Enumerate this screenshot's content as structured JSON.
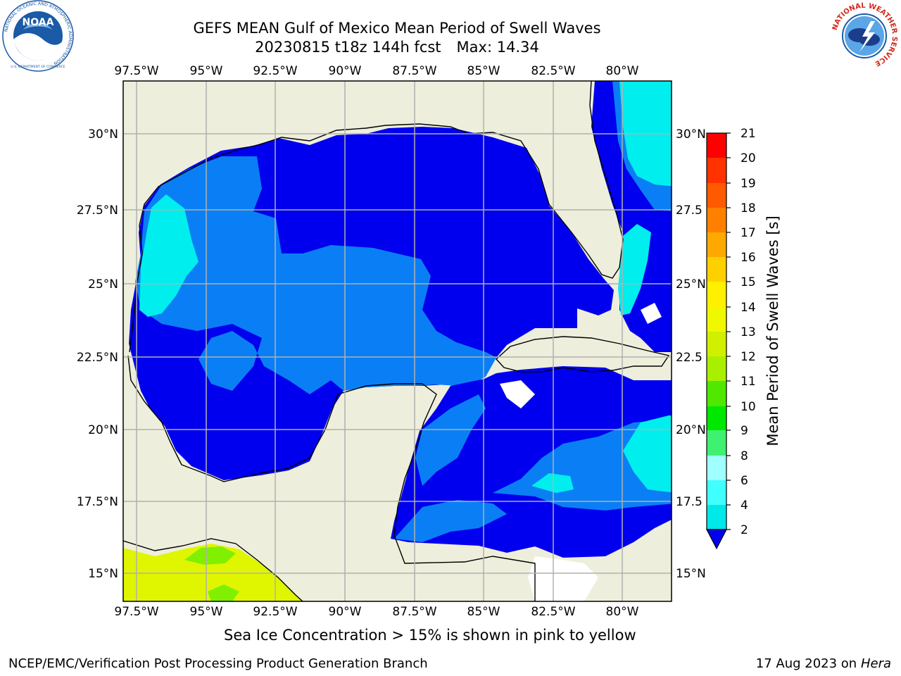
{
  "header": {
    "title": "GEFS MEAN Gulf of Mexico Mean Period of Swell Waves",
    "date_line": "20230815 t18z 144h fcst",
    "max_line": "Max: 14.34"
  },
  "logos": {
    "left": {
      "name": "NOAA",
      "ring_text": "NATIONAL OCEANIC AND ATMOSPHERIC ADMINISTRATION",
      "bottom_text": "U.S. DEPARTMENT OF COMMERCE",
      "color": "#1a5aa6"
    },
    "right": {
      "ring_text": "NATIONAL WEATHER SERVICE",
      "color": "#d42a1e"
    }
  },
  "map": {
    "lon_labels": [
      "97.5°W",
      "95°W",
      "92.5°W",
      "90°W",
      "87.5°W",
      "85°W",
      "82.5°W",
      "80°W"
    ],
    "lat_labels_left": [
      "30°N",
      "27.5°N",
      "25°N",
      "22.5°N",
      "20°N",
      "17.5°N",
      "15°N"
    ],
    "lat_labels_right": [
      "30°N",
      "27.5",
      "25°N",
      "22.5",
      "20°N",
      "17.5",
      "15°N"
    ],
    "colors": {
      "land": "#eeeedc",
      "deep_blue": "#0000ee",
      "mid_blue": "#0a7ff5",
      "cyan": "#00eeee",
      "ice_yellow": "#e0f500",
      "ice_green": "#80f000",
      "grid": "#b0b0b0"
    }
  },
  "colorbar": {
    "label": "Mean Period of Swell Waves [s]",
    "ticks": [
      "21",
      "20",
      "19",
      "18",
      "17",
      "16",
      "15",
      "14",
      "13",
      "12",
      "11",
      "10",
      "9",
      "8",
      "6",
      "4",
      "2"
    ],
    "colors": [
      "#ff0000",
      "#ff3200",
      "#ff5a00",
      "#ff8000",
      "#ffa800",
      "#ffd000",
      "#fff000",
      "#f0f800",
      "#d0f000",
      "#a8f000",
      "#50e800",
      "#00e800",
      "#40f070",
      "#a0ffff",
      "#40ffff",
      "#00e8e8",
      "#0a7ff5",
      "#0000ee"
    ]
  },
  "footer": {
    "sea_ice_note": "Sea Ice Concentration > 15% is shown in pink to yellow",
    "credit": "NCEP/EMC/Verification Post Processing Product Generation Branch",
    "date": "17 Aug 2023 on",
    "host": "Hera"
  }
}
